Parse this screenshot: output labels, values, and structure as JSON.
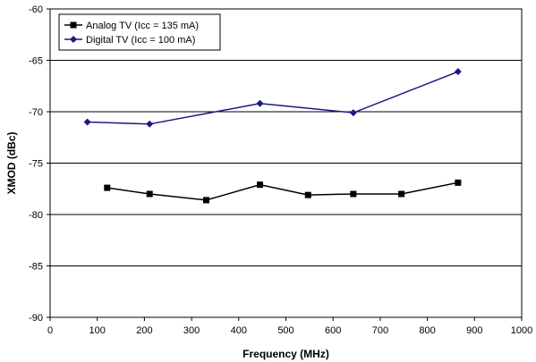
{
  "chart_data": {
    "type": "line",
    "xlabel": "Frequency (MHz)",
    "ylabel": "XMOD (dBc)",
    "xlim": [
      0,
      1000
    ],
    "ylim": [
      -90,
      -60
    ],
    "xticks": [
      0,
      100,
      200,
      300,
      400,
      500,
      600,
      700,
      800,
      900,
      1000
    ],
    "yticks": [
      -90,
      -85,
      -80,
      -75,
      -70,
      -65,
      -60
    ],
    "grid": "horizontal",
    "legend_position": "top-left",
    "series": [
      {
        "name": "Analog TV (Icc = 135 mA)",
        "color": "#000000",
        "marker": "square",
        "x": [
          121,
          211,
          331,
          445,
          547,
          643,
          745,
          865
        ],
        "y": [
          -77.4,
          -78.0,
          -78.6,
          -77.1,
          -78.1,
          -78.0,
          -78.0,
          -76.9
        ]
      },
      {
        "name": "Digital TV (Icc = 100 mA)",
        "color": "#1a1a80",
        "marker": "diamond",
        "x": [
          79,
          211,
          445,
          643,
          865
        ],
        "y": [
          -71.0,
          -71.2,
          -69.2,
          -70.1,
          -66.1
        ]
      }
    ]
  }
}
